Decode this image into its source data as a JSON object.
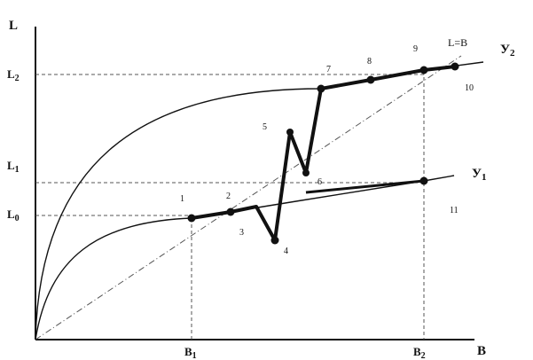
{
  "axes": {
    "y_label": "L",
    "x_label": "B",
    "y_ticks": [
      "L0",
      "L1",
      "L2"
    ],
    "x_ticks": [
      "B1",
      "B2"
    ]
  },
  "curves": {
    "upper": "У2",
    "lower": "У1",
    "diagonal": "L=B"
  },
  "points": [
    "1",
    "2",
    "3",
    "4",
    "5",
    "6",
    "7",
    "8",
    "9",
    "10",
    "11"
  ],
  "colors": {
    "ink": "#111111",
    "grid": "#555555",
    "background": "#ffffff"
  }
}
